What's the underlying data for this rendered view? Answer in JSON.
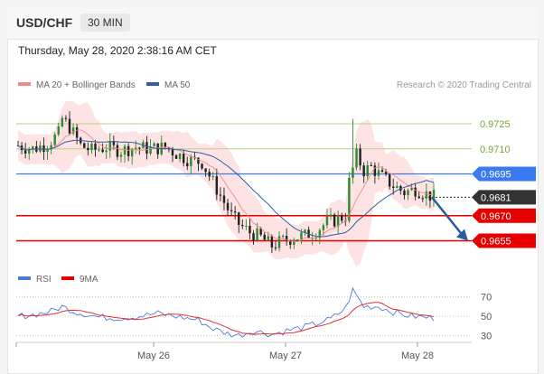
{
  "header": {
    "pair": "USD/CHF",
    "timeframe": "30 MIN"
  },
  "datetime": "Thursday, May 28, 2020 2:38:16 AM CET",
  "legend": {
    "bollinger": "MA 20 + Bollinger Bands",
    "ma50": "MA 50",
    "credit": "Research © 2020 Trading Central",
    "rsi": "RSI",
    "rsi_ma": "9MA"
  },
  "colors": {
    "bollinger": "#f08a8a",
    "band_fill": "#fde3e3",
    "ma50": "#2f5f9e",
    "up": "#2e8b2e",
    "down": "#222222",
    "resistance": "#b4d28c",
    "current": "#3a7af0",
    "support": "#e60000",
    "last": "#333333",
    "arrow": "#2c5aa0"
  },
  "chart_data": [
    {
      "type": "candlestick",
      "x_ticks": [
        "May 26",
        "May 27",
        "May 28"
      ],
      "ylim": [
        0.9645,
        0.9745
      ],
      "levels": [
        {
          "value": "0.9725",
          "kind": "resistance"
        },
        {
          "value": "0.9710",
          "kind": "resistance"
        },
        {
          "value": "0.9695",
          "kind": "current"
        },
        {
          "value": "0.9681",
          "kind": "last"
        },
        {
          "value": "0.9670",
          "kind": "support"
        },
        {
          "value": "0.9655",
          "kind": "support"
        }
      ],
      "close_path": [
        [
          0,
          0.9712
        ],
        [
          4,
          0.971
        ],
        [
          8,
          0.9713
        ],
        [
          11,
          0.9719
        ],
        [
          12,
          0.9728
        ],
        [
          14,
          0.9723
        ],
        [
          17,
          0.9712
        ],
        [
          20,
          0.9709
        ],
        [
          24,
          0.9711
        ],
        [
          28,
          0.9709
        ],
        [
          32,
          0.9711
        ],
        [
          36,
          0.971
        ],
        [
          40,
          0.9711
        ],
        [
          44,
          0.9706
        ],
        [
          47,
          0.9703
        ],
        [
          50,
          0.9702
        ],
        [
          53,
          0.969
        ],
        [
          56,
          0.9678
        ],
        [
          58,
          0.967
        ],
        [
          60,
          0.9665
        ],
        [
          63,
          0.966
        ],
        [
          66,
          0.9657
        ],
        [
          69,
          0.9652
        ],
        [
          72,
          0.9655
        ],
        [
          75,
          0.9657
        ],
        [
          78,
          0.9658
        ],
        [
          81,
          0.9661
        ],
        [
          84,
          0.9666
        ],
        [
          87,
          0.9668
        ],
        [
          89,
          0.967
        ],
        [
          90,
          0.969
        ],
        [
          92,
          0.9706
        ],
        [
          94,
          0.9697
        ],
        [
          96,
          0.9699
        ],
        [
          99,
          0.9693
        ],
        [
          102,
          0.9688
        ],
        [
          105,
          0.9684
        ],
        [
          108,
          0.9686
        ],
        [
          111,
          0.9683
        ],
        [
          113,
          0.9681
        ]
      ],
      "spike_high": 0.9728,
      "projection_target": 0.9655
    },
    {
      "type": "line",
      "series": [
        {
          "name": "RSI"
        },
        {
          "name": "9MA"
        }
      ],
      "y_ticks": [
        70,
        50,
        30
      ],
      "ylim": [
        20,
        80
      ],
      "rsi_path": [
        [
          0,
          50
        ],
        [
          5,
          52
        ],
        [
          9,
          55
        ],
        [
          12,
          60
        ],
        [
          16,
          54
        ],
        [
          22,
          49
        ],
        [
          28,
          48
        ],
        [
          33,
          50
        ],
        [
          38,
          53
        ],
        [
          44,
          49
        ],
        [
          49,
          46
        ],
        [
          53,
          37
        ],
        [
          57,
          32
        ],
        [
          60,
          30
        ],
        [
          64,
          35
        ],
        [
          69,
          31
        ],
        [
          73,
          35
        ],
        [
          77,
          38
        ],
        [
          81,
          42
        ],
        [
          85,
          47
        ],
        [
          89,
          58
        ],
        [
          91,
          77
        ],
        [
          94,
          60
        ],
        [
          98,
          60
        ],
        [
          103,
          53
        ],
        [
          107,
          50
        ],
        [
          110,
          49
        ],
        [
          113,
          48
        ]
      ]
    }
  ]
}
